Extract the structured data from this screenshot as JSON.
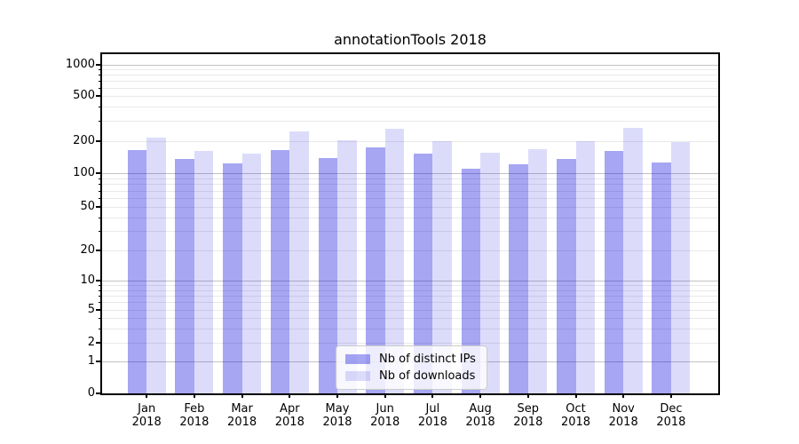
{
  "title": "annotationTools 2018",
  "chart_data": {
    "type": "bar",
    "title": "annotationTools 2018",
    "x_months": [
      "Jan",
      "Feb",
      "Mar",
      "Apr",
      "May",
      "Jun",
      "Jul",
      "Aug",
      "Sep",
      "Oct",
      "Nov",
      "Dec"
    ],
    "x_year": "2018",
    "y_scale": "symlog",
    "y_major_ticks": [
      0,
      1,
      2,
      5,
      10,
      20,
      50,
      100,
      200,
      500,
      1000
    ],
    "y_minor_ticks": [
      3,
      4,
      6,
      7,
      8,
      9,
      30,
      40,
      60,
      70,
      80,
      90,
      300,
      400,
      600,
      700,
      800,
      900
    ],
    "ylim": [
      0,
      1200
    ],
    "grid": "both",
    "legend_position": "lower-center",
    "series": [
      {
        "name": "Nb of distinct IPs",
        "color": "#0000dc59",
        "values": [
          163,
          136,
          124,
          165,
          137,
          173,
          151,
          110,
          120,
          135,
          160,
          126
        ]
      },
      {
        "name": "Nb of downloads",
        "color": "#0000dc23",
        "values": [
          212,
          161,
          151,
          240,
          202,
          255,
          197,
          155,
          168,
          200,
          258,
          195
        ]
      }
    ]
  }
}
